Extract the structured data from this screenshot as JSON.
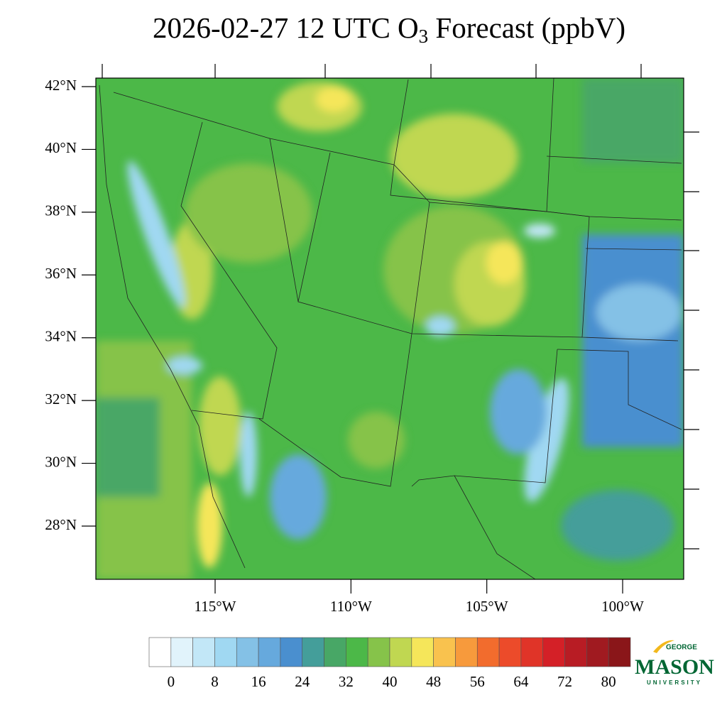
{
  "title": {
    "main": "2026-02-27 12 UTC O",
    "subscript": "3",
    "rest": " Forecast (ppbV)"
  },
  "map": {
    "lat_ticks": [
      {
        "value": 42,
        "label": "42°N"
      },
      {
        "value": 40,
        "label": "40°N"
      },
      {
        "value": 38,
        "label": "38°N"
      },
      {
        "value": 36,
        "label": "36°N"
      },
      {
        "value": 34,
        "label": "34°N"
      },
      {
        "value": 32,
        "label": "32°N"
      },
      {
        "value": 30,
        "label": "30°N"
      },
      {
        "value": 28,
        "label": "28°N"
      }
    ],
    "lon_ticks": [
      {
        "value": -115,
        "label": "115°W"
      },
      {
        "value": -110,
        "label": "110°W"
      },
      {
        "value": -105,
        "label": "105°W"
      },
      {
        "value": -100,
        "label": "100°W"
      }
    ]
  },
  "colorbar": {
    "range": [
      -4,
      84
    ],
    "ticks": [
      0,
      8,
      16,
      24,
      32,
      40,
      48,
      56,
      64,
      72,
      80
    ],
    "colors": [
      "#ffffff",
      "#e1f3fb",
      "#c2e7f7",
      "#a0d8f2",
      "#84c1e6",
      "#66a9dd",
      "#4a8fcf",
      "#449e9a",
      "#48a766",
      "#4cb848",
      "#86c34a",
      "#c0d751",
      "#f5e65a",
      "#f9c24e",
      "#f79a3c",
      "#f26c2d",
      "#ec4b2a",
      "#e03428",
      "#d42027",
      "#b81c24",
      "#a01a20",
      "#8a1619"
    ]
  },
  "logo": {
    "top": "GEORGE",
    "main": "MASON",
    "bottom": "UNIVERSITY"
  }
}
